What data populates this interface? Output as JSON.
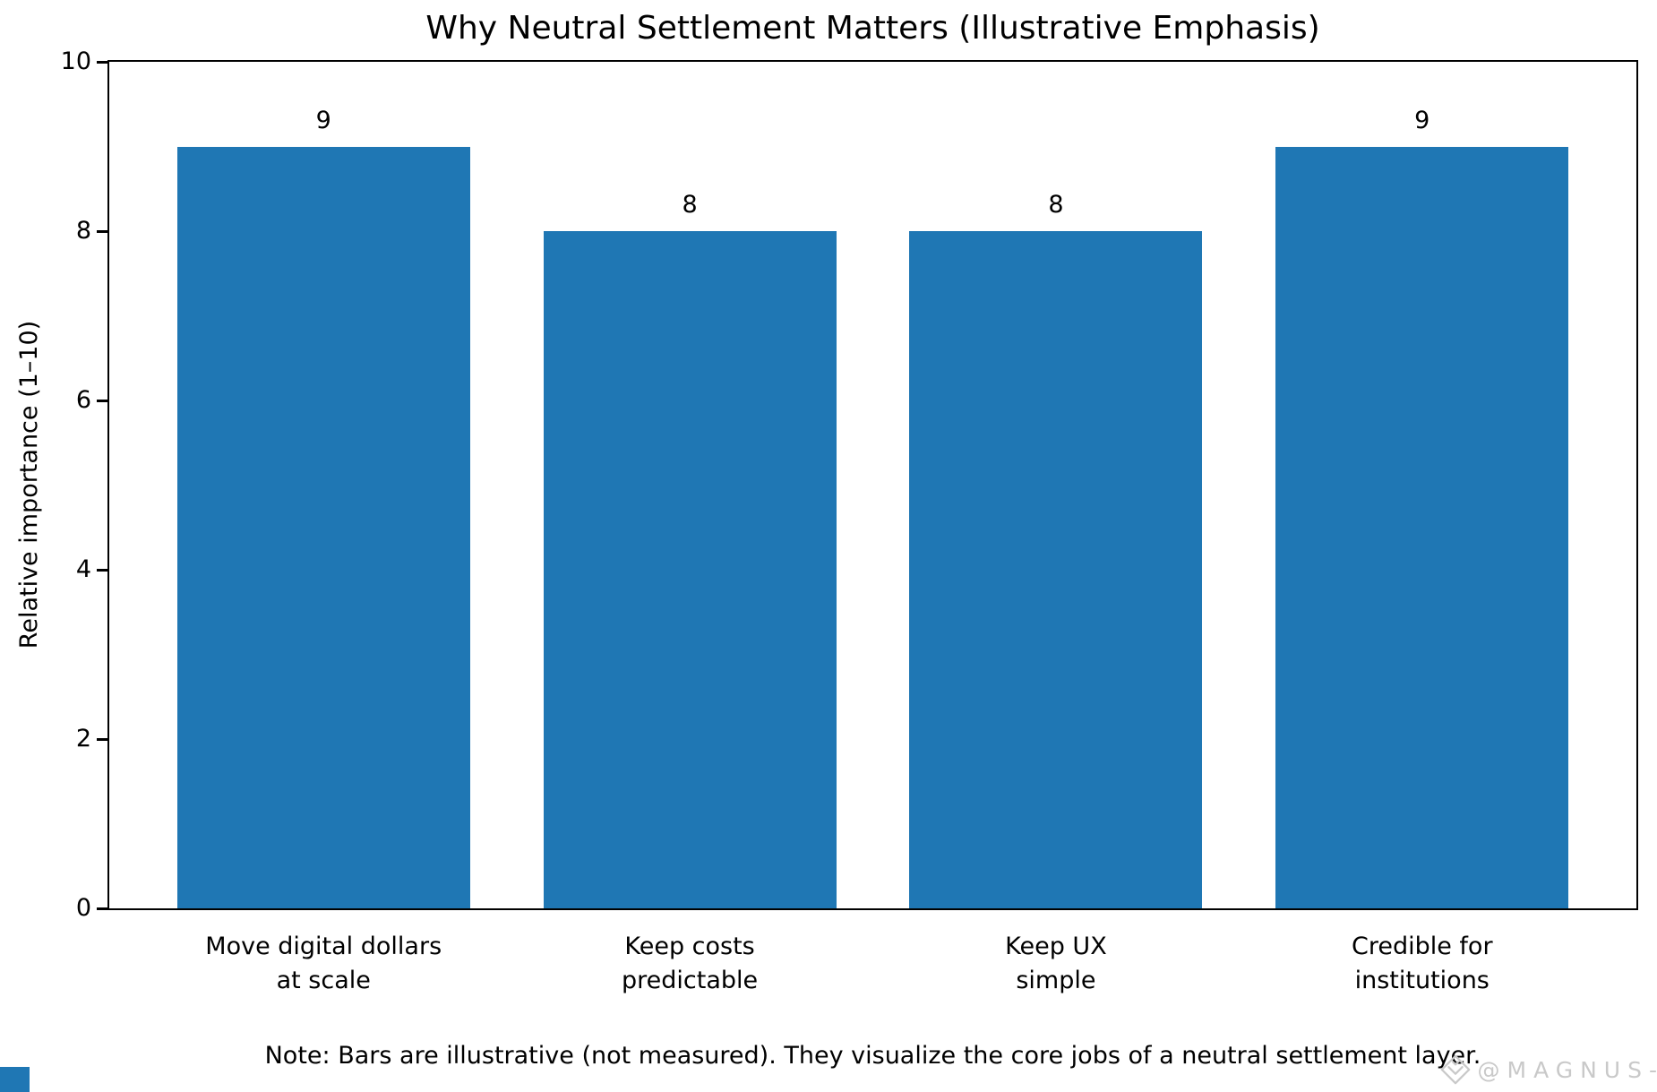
{
  "figure": {
    "title": "Why Neutral Settlement Matters (Illustrative Emphasis)",
    "note": "Note: Bars are illustrative (not measured). They visualize the core jobs of a neutral settlement layer.",
    "watermark_text": "@MAGNUS-",
    "watermark_icon": "diamond-layers-icon",
    "background_color": "#ffffff"
  },
  "chart_data": {
    "type": "bar",
    "title": "Why Neutral Settlement Matters (Illustrative Emphasis)",
    "categories": [
      "Move digital dollars\nat scale",
      "Keep costs\npredictable",
      "Keep UX\nsimple",
      "Credible for\ninstitutions"
    ],
    "values": [
      9,
      8,
      8,
      9
    ],
    "bar_value_labels": [
      "9",
      "8",
      "8",
      "9"
    ],
    "xlabel": "",
    "ylabel": "Relative importance (1–10)",
    "ylim": [
      0,
      10
    ],
    "yticks": [
      0,
      2,
      4,
      6,
      8,
      10
    ],
    "grid": false,
    "legend": null,
    "bar_color": "#1f77b4",
    "axis_color": "#000000",
    "text_color": "#000000",
    "watermark_color": "#c9c9c9"
  }
}
